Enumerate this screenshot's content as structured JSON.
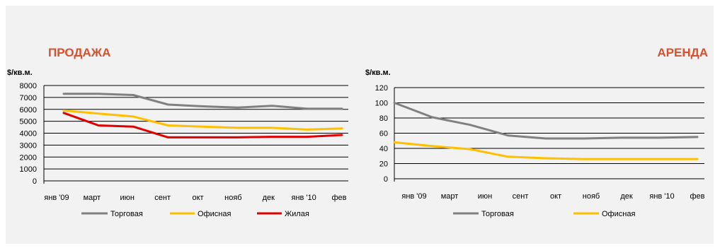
{
  "chart_data": [
    {
      "type": "line",
      "title": "ПРОДАЖА",
      "title_color": "#d9512c",
      "ylabel": "$/кв.м.",
      "xlabel": "",
      "categories": [
        "янв '09",
        "март",
        "июн",
        "сент",
        "окт",
        "нояб",
        "дек",
        "янв '10",
        "фев"
      ],
      "ylim": [
        0,
        8000
      ],
      "yticks": [
        0,
        1000,
        2000,
        3000,
        4000,
        5000,
        6000,
        7000,
        8000
      ],
      "grid": true,
      "legend": "bottom",
      "series": [
        {
          "name": "Торговая",
          "color": "#808080",
          "values": [
            7300,
            7300,
            7200,
            6400,
            6250,
            6150,
            6300,
            6050,
            6050
          ]
        },
        {
          "name": "Офисная",
          "color": "#ffc000",
          "values": [
            5900,
            5650,
            5400,
            4650,
            4550,
            4450,
            4450,
            4300,
            4400
          ]
        },
        {
          "name": "Жилая",
          "color": "#e00000",
          "values": [
            5700,
            4650,
            4550,
            3650,
            3650,
            3650,
            3700,
            3700,
            3850
          ]
        }
      ]
    },
    {
      "type": "line",
      "title": "АРЕНДА",
      "title_color": "#d9512c",
      "ylabel": "$/кв.м.",
      "xlabel": "",
      "categories": [
        "янв '09",
        "март",
        "июн",
        "сент",
        "окт",
        "нояб",
        "дек",
        "янв '10",
        "фев"
      ],
      "ylim": [
        0,
        120
      ],
      "yticks": [
        0,
        20,
        40,
        60,
        80,
        100,
        120
      ],
      "grid": true,
      "legend": "bottom",
      "series": [
        {
          "name": "Торговая",
          "color": "#808080",
          "values": [
            100,
            81,
            71,
            57,
            53,
            53,
            54,
            54,
            55
          ]
        },
        {
          "name": "Офисная",
          "color": "#ffc000",
          "values": [
            48,
            43,
            39,
            29,
            27,
            26,
            26,
            26,
            26
          ]
        }
      ]
    }
  ]
}
